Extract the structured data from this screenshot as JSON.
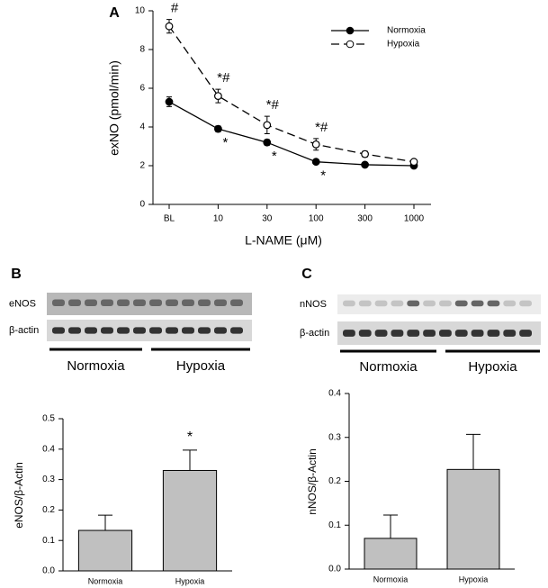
{
  "chart_data": [
    {
      "type": "line",
      "label": "A",
      "ylabel": "exNO (pmol/min)",
      "xlabel": "L-NAME (μM)",
      "categories": [
        "BL",
        "10",
        "30",
        "100",
        "300",
        "1000"
      ],
      "ylim": [
        0,
        10
      ],
      "yticks": [
        0,
        2,
        4,
        6,
        8,
        10
      ],
      "legend": "upper right",
      "series": [
        {
          "name": "Normoxia",
          "color": "#000000",
          "marker": "filled",
          "dashed": false,
          "values": [
            5.3,
            3.9,
            3.2,
            2.2,
            2.05,
            2.0
          ],
          "errors": [
            0.25,
            0.15,
            0.15,
            0.1,
            0.05,
            0.05
          ],
          "annotations": [
            null,
            "*",
            "*",
            "*",
            null,
            null
          ]
        },
        {
          "name": "Hypoxia",
          "color": "#000000",
          "marker": "open",
          "dashed": true,
          "values": [
            9.2,
            5.6,
            4.1,
            3.1,
            2.6,
            2.2
          ],
          "errors": [
            0.35,
            0.35,
            0.45,
            0.3,
            0.15,
            0.1
          ],
          "annotations": [
            "#",
            "*#",
            "*#",
            "*#",
            null,
            null
          ]
        }
      ]
    },
    {
      "type": "bar",
      "label": "B",
      "ylabel": "eNOS/β-Actin",
      "blot": {
        "rows": [
          "eNOS",
          "β-actin"
        ],
        "groups": [
          "Normoxia",
          "Hypoxia"
        ]
      },
      "categories": [
        "Normoxia",
        "Hypoxia"
      ],
      "values": [
        0.133,
        0.33
      ],
      "errors": [
        0.05,
        0.067
      ],
      "annotations": [
        null,
        "*"
      ],
      "color": "#c0c0c0",
      "ylim": [
        0,
        0.5
      ],
      "yticks": [
        {
          "value": 0,
          "label": "0.0"
        },
        0.1,
        0.2,
        0.3,
        0.4,
        0.5
      ]
    },
    {
      "type": "bar",
      "label": "C",
      "ylabel": "nNOS/β-Actin",
      "blot": {
        "rows": [
          "nNOS",
          "β-actin"
        ],
        "groups": [
          "Normoxia",
          "Hypoxia"
        ]
      },
      "categories": [
        "Normoxia",
        "Hypoxia"
      ],
      "values": [
        0.07,
        0.227
      ],
      "errors": [
        0.053,
        0.08
      ],
      "annotations": [
        null,
        null
      ],
      "color": "#c0c0c0",
      "ylim": [
        0,
        0.4
      ],
      "yticks": [
        {
          "value": 0,
          "label": "0.0"
        },
        0.1,
        0.2,
        0.3,
        0.4
      ]
    }
  ]
}
